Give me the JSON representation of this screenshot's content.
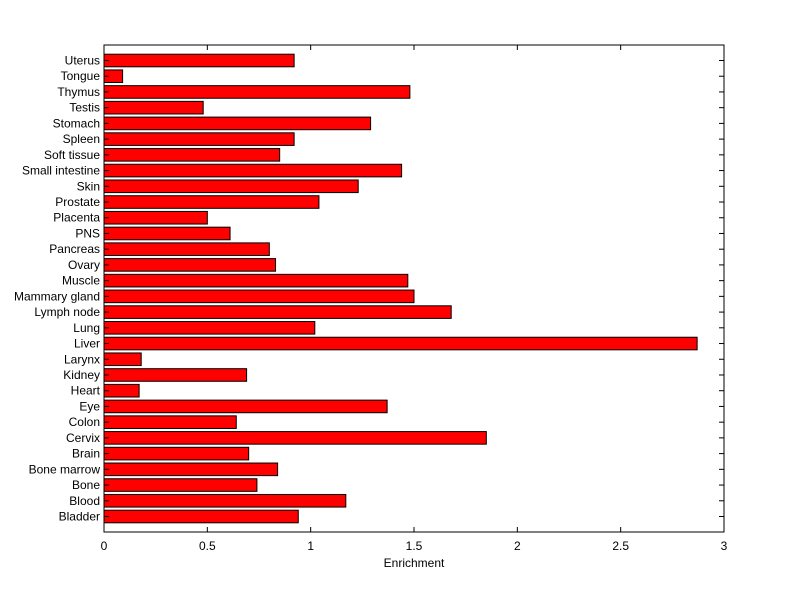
{
  "chart_data": {
    "type": "bar",
    "orientation": "horizontal",
    "categories": [
      "Bladder",
      "Blood",
      "Bone",
      "Bone marrow",
      "Brain",
      "Cervix",
      "Colon",
      "Eye",
      "Heart",
      "Kidney",
      "Larynx",
      "Liver",
      "Lung",
      "Lymph node",
      "Mammary gland",
      "Muscle",
      "Ovary",
      "Pancreas",
      "PNS",
      "Placenta",
      "Prostate",
      "Skin",
      "Small intestine",
      "Soft tissue",
      "Spleen",
      "Stomach",
      "Testis",
      "Thymus",
      "Tongue",
      "Uterus"
    ],
    "values": [
      0.94,
      1.17,
      0.74,
      0.84,
      0.7,
      1.85,
      0.64,
      1.37,
      0.17,
      0.69,
      0.18,
      2.87,
      1.02,
      1.68,
      1.5,
      1.47,
      0.83,
      0.8,
      0.61,
      0.5,
      1.04,
      1.23,
      1.44,
      0.85,
      0.92,
      1.29,
      0.48,
      1.48,
      0.09,
      0.92
    ],
    "title": "",
    "xlabel": "Enrichment",
    "ylabel": "",
    "xlim": [
      0,
      3
    ],
    "xticks": [
      "0",
      "0.5",
      "1",
      "1.5",
      "2",
      "2.5",
      "3"
    ],
    "bar_color": "#ff0000",
    "edge_color": "#000000",
    "grid": false,
    "legend": "none"
  }
}
